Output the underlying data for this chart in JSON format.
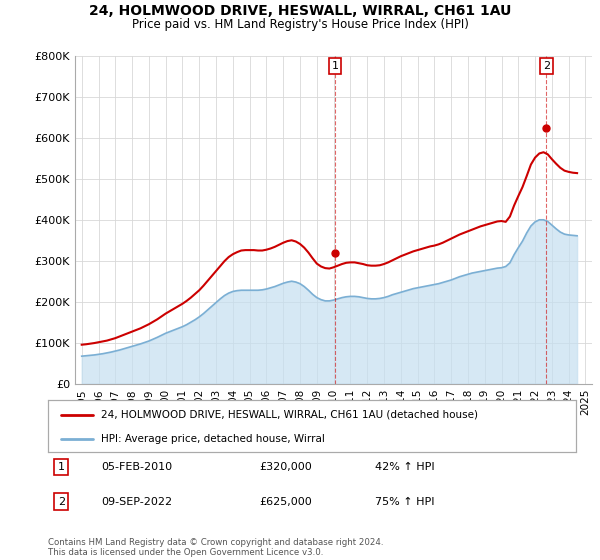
{
  "title": "24, HOLMWOOD DRIVE, HESWALL, WIRRAL, CH61 1AU",
  "subtitle": "Price paid vs. HM Land Registry's House Price Index (HPI)",
  "ylim": [
    0,
    800000
  ],
  "yticks": [
    0,
    100000,
    200000,
    300000,
    400000,
    500000,
    600000,
    700000,
    800000
  ],
  "ytick_labels": [
    "£0",
    "£100K",
    "£200K",
    "£300K",
    "£400K",
    "£500K",
    "£600K",
    "£700K",
    "£800K"
  ],
  "xlim_start": 1994.6,
  "xlim_end": 2025.4,
  "xtick_years": [
    1995,
    1996,
    1997,
    1998,
    1999,
    2000,
    2001,
    2002,
    2003,
    2004,
    2005,
    2006,
    2007,
    2008,
    2009,
    2010,
    2011,
    2012,
    2013,
    2014,
    2015,
    2016,
    2017,
    2018,
    2019,
    2020,
    2021,
    2022,
    2023,
    2024,
    2025
  ],
  "hpi_color": "#7bafd4",
  "hpi_fill_color": "#c5dff0",
  "price_color": "#cc0000",
  "sale1_x": 2010.08,
  "sale1_y": 320000,
  "sale1_label": "1",
  "sale1_date": "05-FEB-2010",
  "sale1_price": "£320,000",
  "sale1_hpi": "42% ↑ HPI",
  "sale2_x": 2022.67,
  "sale2_y": 625000,
  "sale2_label": "2",
  "sale2_date": "09-SEP-2022",
  "sale2_price": "£625,000",
  "sale2_hpi": "75% ↑ HPI",
  "legend_label_price": "24, HOLMWOOD DRIVE, HESWALL, WIRRAL, CH61 1AU (detached house)",
  "legend_label_hpi": "HPI: Average price, detached house, Wirral",
  "footer": "Contains HM Land Registry data © Crown copyright and database right 2024.\nThis data is licensed under the Open Government Licence v3.0.",
  "hpi_data_x": [
    1995.0,
    1995.25,
    1995.5,
    1995.75,
    1996.0,
    1996.25,
    1996.5,
    1996.75,
    1997.0,
    1997.25,
    1997.5,
    1997.75,
    1998.0,
    1998.25,
    1998.5,
    1998.75,
    1999.0,
    1999.25,
    1999.5,
    1999.75,
    2000.0,
    2000.25,
    2000.5,
    2000.75,
    2001.0,
    2001.25,
    2001.5,
    2001.75,
    2002.0,
    2002.25,
    2002.5,
    2002.75,
    2003.0,
    2003.25,
    2003.5,
    2003.75,
    2004.0,
    2004.25,
    2004.5,
    2004.75,
    2005.0,
    2005.25,
    2005.5,
    2005.75,
    2006.0,
    2006.25,
    2006.5,
    2006.75,
    2007.0,
    2007.25,
    2007.5,
    2007.75,
    2008.0,
    2008.25,
    2008.5,
    2008.75,
    2009.0,
    2009.25,
    2009.5,
    2009.75,
    2010.0,
    2010.25,
    2010.5,
    2010.75,
    2011.0,
    2011.25,
    2011.5,
    2011.75,
    2012.0,
    2012.25,
    2012.5,
    2012.75,
    2013.0,
    2013.25,
    2013.5,
    2013.75,
    2014.0,
    2014.25,
    2014.5,
    2014.75,
    2015.0,
    2015.25,
    2015.5,
    2015.75,
    2016.0,
    2016.25,
    2016.5,
    2016.75,
    2017.0,
    2017.25,
    2017.5,
    2017.75,
    2018.0,
    2018.25,
    2018.5,
    2018.75,
    2019.0,
    2019.25,
    2019.5,
    2019.75,
    2020.0,
    2020.25,
    2020.5,
    2020.75,
    2021.0,
    2021.25,
    2021.5,
    2021.75,
    2022.0,
    2022.25,
    2022.5,
    2022.75,
    2023.0,
    2023.25,
    2023.5,
    2023.75,
    2024.0,
    2024.25,
    2024.5
  ],
  "hpi_data_y": [
    67000,
    68000,
    69000,
    70000,
    71500,
    73000,
    75000,
    77000,
    79500,
    82000,
    85000,
    88000,
    91000,
    94000,
    97000,
    100500,
    104000,
    108500,
    113000,
    118000,
    123000,
    127000,
    131000,
    135000,
    139000,
    144000,
    150000,
    156000,
    163000,
    171000,
    180000,
    189000,
    198000,
    207000,
    215000,
    221000,
    225000,
    227000,
    228000,
    228000,
    228000,
    228000,
    228000,
    229000,
    231000,
    234000,
    237000,
    241000,
    245000,
    248000,
    250000,
    248000,
    244000,
    237000,
    228000,
    218000,
    210000,
    205000,
    202000,
    202000,
    204000,
    207000,
    210000,
    212000,
    213000,
    213000,
    212000,
    210000,
    208000,
    207000,
    207000,
    208000,
    210000,
    213000,
    217000,
    220000,
    223000,
    226000,
    229000,
    232000,
    234000,
    236000,
    238000,
    240000,
    242000,
    244000,
    247000,
    250000,
    253000,
    257000,
    261000,
    264000,
    267000,
    270000,
    272000,
    274000,
    276000,
    278000,
    280000,
    282000,
    283000,
    286000,
    295000,
    315000,
    332000,
    348000,
    368000,
    385000,
    395000,
    400000,
    400000,
    396000,
    387000,
    378000,
    370000,
    365000,
    363000,
    362000,
    361000
  ],
  "price_data_x": [
    1995.0,
    1995.25,
    1995.5,
    1995.75,
    1996.0,
    1996.25,
    1996.5,
    1996.75,
    1997.0,
    1997.25,
    1997.5,
    1997.75,
    1998.0,
    1998.25,
    1998.5,
    1998.75,
    1999.0,
    1999.25,
    1999.5,
    1999.75,
    2000.0,
    2000.25,
    2000.5,
    2000.75,
    2001.0,
    2001.25,
    2001.5,
    2001.75,
    2002.0,
    2002.25,
    2002.5,
    2002.75,
    2003.0,
    2003.25,
    2003.5,
    2003.75,
    2004.0,
    2004.25,
    2004.5,
    2004.75,
    2005.0,
    2005.25,
    2005.5,
    2005.75,
    2006.0,
    2006.25,
    2006.5,
    2006.75,
    2007.0,
    2007.25,
    2007.5,
    2007.75,
    2008.0,
    2008.25,
    2008.5,
    2008.75,
    2009.0,
    2009.25,
    2009.5,
    2009.75,
    2010.0,
    2010.25,
    2010.5,
    2010.75,
    2011.0,
    2011.25,
    2011.5,
    2011.75,
    2012.0,
    2012.25,
    2012.5,
    2012.75,
    2013.0,
    2013.25,
    2013.5,
    2013.75,
    2014.0,
    2014.25,
    2014.5,
    2014.75,
    2015.0,
    2015.25,
    2015.5,
    2015.75,
    2016.0,
    2016.25,
    2016.5,
    2016.75,
    2017.0,
    2017.25,
    2017.5,
    2017.75,
    2018.0,
    2018.25,
    2018.5,
    2018.75,
    2019.0,
    2019.25,
    2019.5,
    2019.75,
    2020.0,
    2020.25,
    2020.5,
    2020.75,
    2021.0,
    2021.25,
    2021.5,
    2021.75,
    2022.0,
    2022.25,
    2022.5,
    2022.75,
    2023.0,
    2023.25,
    2023.5,
    2023.75,
    2024.0,
    2024.25,
    2024.5
  ],
  "price_data_y": [
    95000,
    96000,
    97500,
    99000,
    101000,
    103000,
    105000,
    108000,
    111000,
    115000,
    119000,
    123000,
    127000,
    131000,
    135000,
    140000,
    145000,
    151000,
    157000,
    164000,
    171000,
    177000,
    183000,
    189000,
    195000,
    202000,
    210000,
    219000,
    228000,
    239000,
    251000,
    263000,
    275000,
    287000,
    299000,
    309000,
    316000,
    321000,
    325000,
    326000,
    326000,
    326000,
    325000,
    325000,
    327000,
    330000,
    334000,
    339000,
    344000,
    348000,
    350000,
    347000,
    341000,
    332000,
    320000,
    306000,
    293000,
    286000,
    282000,
    281000,
    284000,
    288000,
    292000,
    295000,
    296000,
    296000,
    294000,
    292000,
    289000,
    288000,
    288000,
    289000,
    292000,
    296000,
    301000,
    306000,
    311000,
    315000,
    319000,
    323000,
    326000,
    329000,
    332000,
    335000,
    337000,
    340000,
    344000,
    349000,
    354000,
    359000,
    364000,
    368000,
    372000,
    376000,
    380000,
    384000,
    387000,
    390000,
    393000,
    396000,
    397000,
    395000,
    408000,
    435000,
    458000,
    480000,
    507000,
    535000,
    552000,
    562000,
    565000,
    560000,
    548000,
    537000,
    527000,
    520000,
    517000,
    515000,
    514000
  ]
}
